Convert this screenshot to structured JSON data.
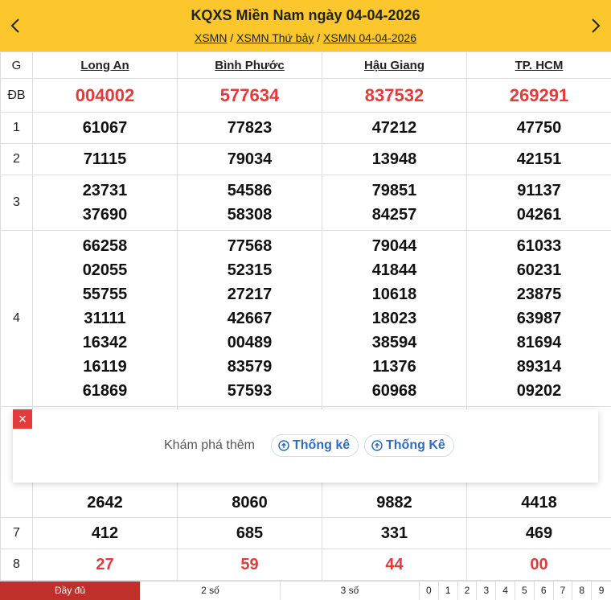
{
  "header": {
    "title": "KQXS Miền Nam ngày 04-04-2026",
    "crumbs": [
      "XSMN",
      "XSMN Thứ bảy",
      "XSMN 04-04-2026"
    ],
    "separator": "/",
    "prev_icon": "chevron-left-icon",
    "next_icon": "chevron-right-icon"
  },
  "table": {
    "col_label": "G",
    "provinces": [
      "Long An",
      "Bình Phước",
      "Hậu Giang",
      "TP. HCM"
    ],
    "rows": [
      {
        "label": "ĐB",
        "values": [
          [
            "004002"
          ],
          [
            "577634"
          ],
          [
            "837532"
          ],
          [
            "269291"
          ]
        ]
      },
      {
        "label": "1",
        "values": [
          [
            "61067"
          ],
          [
            "77823"
          ],
          [
            "47212"
          ],
          [
            "47750"
          ]
        ]
      },
      {
        "label": "2",
        "values": [
          [
            "71115"
          ],
          [
            "79034"
          ],
          [
            "13948"
          ],
          [
            "42151"
          ]
        ]
      },
      {
        "label": "3",
        "values": [
          [
            "23731",
            "37690"
          ],
          [
            "54586",
            "58308"
          ],
          [
            "79851",
            "84257"
          ],
          [
            "91137",
            "04261"
          ]
        ]
      },
      {
        "label": "4",
        "values": [
          [
            "66258",
            "02055",
            "55755",
            "31111",
            "16342",
            "16119",
            "61869"
          ],
          [
            "77568",
            "52315",
            "27217",
            "42667",
            "00489",
            "83579",
            "57593"
          ],
          [
            "79044",
            "41844",
            "10618",
            "18023",
            "38594",
            "11376",
            "60968"
          ],
          [
            "61033",
            "60231",
            "23875",
            "63987",
            "81694",
            "89314",
            "09202"
          ]
        ]
      },
      {
        "label": "",
        "values": [
          [
            "2642"
          ],
          [
            "8060"
          ],
          [
            "9882"
          ],
          [
            "4418"
          ]
        ]
      },
      {
        "label": "7",
        "values": [
          [
            "412"
          ],
          [
            "685"
          ],
          [
            "331"
          ],
          [
            "469"
          ]
        ]
      },
      {
        "label": "8",
        "values": [
          [
            "27"
          ],
          [
            "59"
          ],
          [
            "44"
          ],
          [
            "00"
          ]
        ]
      }
    ]
  },
  "popup": {
    "close_label": "×",
    "label": "Khám phá thêm",
    "buttons": [
      "Thống kê",
      "Thống Kê"
    ]
  },
  "bottom": {
    "tabs": [
      "Đầy đủ",
      "2 số",
      "3 số"
    ],
    "digits": [
      "0",
      "1",
      "2",
      "3",
      "4",
      "5",
      "6",
      "7",
      "8",
      "9"
    ]
  },
  "colors": {
    "header_bg": "#fcc72c",
    "red": "#e03c3c",
    "active_tab": "#c0302b",
    "link_blue": "#2f6cbf"
  }
}
